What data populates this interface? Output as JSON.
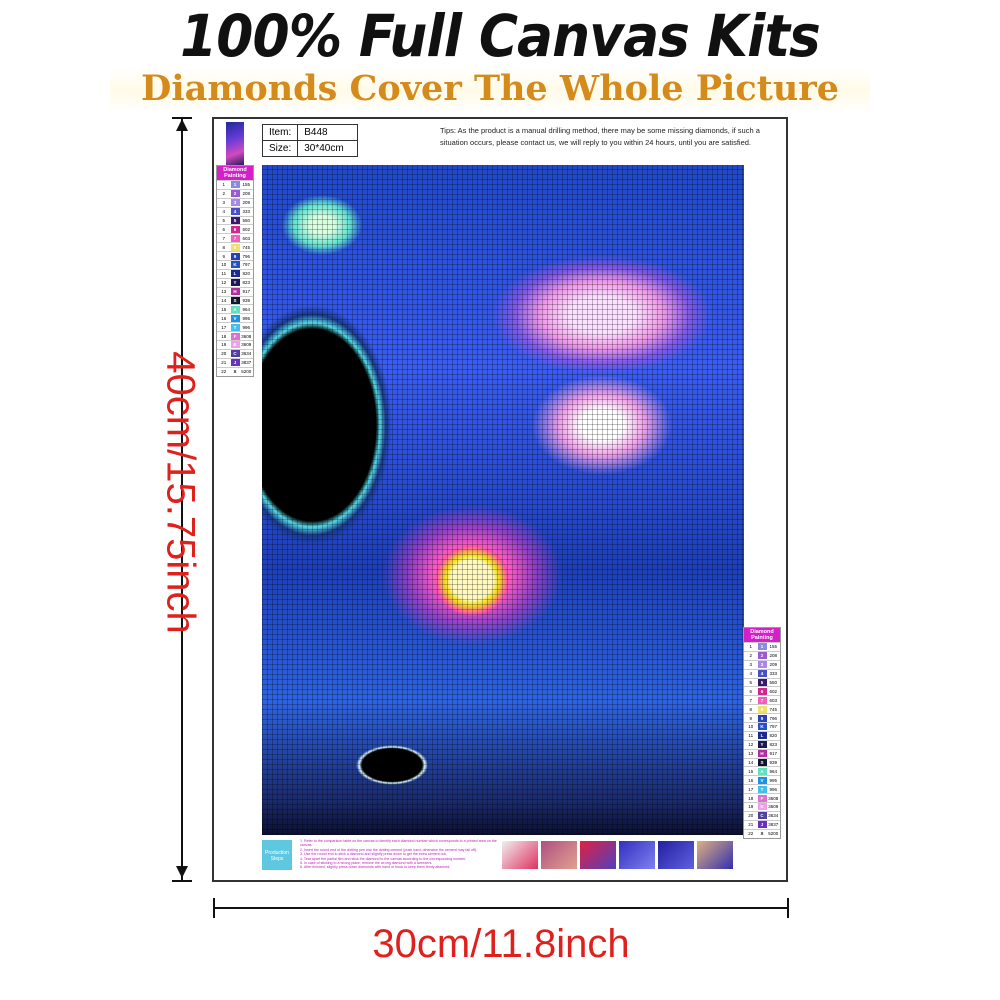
{
  "header": {
    "title": "100% Full Canvas Kits",
    "subtitle": "Diamonds Cover The Whole Picture"
  },
  "dimensions": {
    "height": "40cm/15.75inch",
    "width": "30cm/11.8inch"
  },
  "canvas": {
    "item_label": "Item:",
    "item_value": "B448",
    "size_label": "Size:",
    "size_value": "30*40cm",
    "tips": "Tips: As the product is a manual drilling method, there may be some missing diamonds, if such a situation occurs, please contact us, we will reply to you within 24 hours, until you are satisfied.",
    "legend_title": "Diamond Painting",
    "legend": [
      {
        "n": "1",
        "s": "1",
        "code": "155",
        "color": "#8a8ae0"
      },
      {
        "n": "2",
        "s": "2",
        "code": "208",
        "color": "#9a5ad0"
      },
      {
        "n": "3",
        "s": "3",
        "code": "209",
        "color": "#a888e8"
      },
      {
        "n": "4",
        "s": "4",
        "code": "333",
        "color": "#4a50c8"
      },
      {
        "n": "5",
        "s": "5",
        "code": "550",
        "color": "#3a1a6a"
      },
      {
        "n": "6",
        "s": "6",
        "code": "602",
        "color": "#d02890"
      },
      {
        "n": "7",
        "s": "7",
        "code": "603",
        "color": "#f060c0"
      },
      {
        "n": "8",
        "s": "8",
        "code": "745",
        "color": "#f0e070"
      },
      {
        "n": "9",
        "s": "9",
        "code": "796",
        "color": "#2a40b8"
      },
      {
        "n": "10",
        "s": "K",
        "code": "797",
        "color": "#2850c8"
      },
      {
        "n": "11",
        "s": "L",
        "code": "820",
        "color": "#1a2a90"
      },
      {
        "n": "12",
        "s": "Y",
        "code": "823",
        "color": "#1a1a50"
      },
      {
        "n": "13",
        "s": "H",
        "code": "917",
        "color": "#b030a0"
      },
      {
        "n": "14",
        "s": "S",
        "code": "939",
        "color": "#101830"
      },
      {
        "n": "15",
        "s": "A",
        "code": "964",
        "color": "#60e0c0"
      },
      {
        "n": "16",
        "s": "V",
        "code": "995",
        "color": "#2090e0"
      },
      {
        "n": "17",
        "s": "T",
        "code": "996",
        "color": "#40c0f0"
      },
      {
        "n": "18",
        "s": "F",
        "code": "3608",
        "color": "#e070d0"
      },
      {
        "n": "19",
        "s": "E",
        "code": "3609",
        "color": "#f0a0e8"
      },
      {
        "n": "20",
        "s": "C",
        "code": "3634",
        "color": "#5040a0"
      },
      {
        "n": "21",
        "s": "J",
        "code": "3837",
        "color": "#6a30c0"
      },
      {
        "n": "22",
        "s": "X",
        "code": "5200",
        "color": "#ffffff"
      }
    ],
    "instructions_logo": "Production Steps",
    "steps": [
      "1. Refer to the comparison table on the canvas to identify each diamond number which corresponds to a printed area on the canvas.",
      "2. Insert the round end of the dotting pen into the dotting cement (push hard; otherwise the cement may fall off).",
      "3. Use the round end to stick a diamond and slightly press down to get the extra cement out.",
      "4. Tear apart the partial film and stick the diamond to the canvas according to the corresponding number.",
      "5. In case of sticking to a wrong place, remove the wrong diamond with a tweezers.",
      "6. After finished, slightly press down diamonds with hand or book to keep them firmly attached."
    ]
  }
}
